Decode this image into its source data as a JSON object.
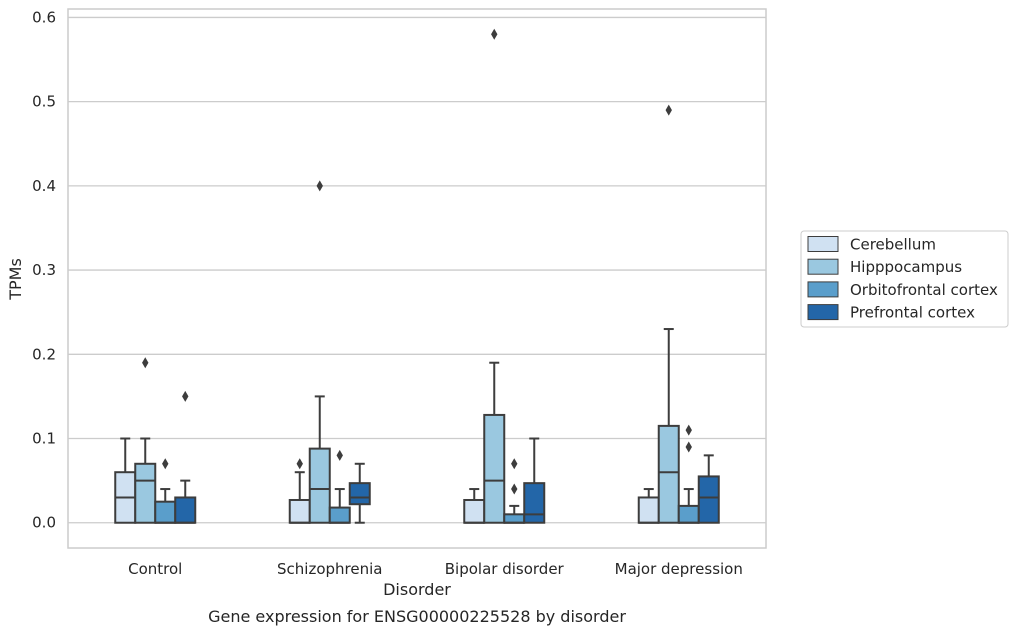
{
  "chart_data": {
    "type": "box",
    "title": "Gene expression for ENSG00000225528 by disorder",
    "xlabel": "Disorder",
    "ylabel": "TPMs",
    "ylim": [
      -0.03,
      0.61
    ],
    "yticks": [
      "0.0",
      "0.1",
      "0.2",
      "0.3",
      "0.4",
      "0.5",
      "0.6"
    ],
    "ytick_values": [
      0,
      0.1,
      0.2,
      0.3,
      0.4,
      0.5,
      0.6
    ],
    "grid": "horizontal",
    "legend_placement": "center-right outside",
    "categories": [
      "Control",
      "Schizophrenia",
      "Bipolar disorder",
      "Major depression"
    ],
    "series": [
      {
        "name": "Cerebellum",
        "color": "#d0e1f2",
        "boxes": [
          {
            "whislo": 0,
            "q1": 0,
            "med": 0.03,
            "q3": 0.06,
            "whishi": 0.1,
            "fliers": []
          },
          {
            "whislo": 0,
            "q1": 0,
            "med": 0,
            "q3": 0.027,
            "whishi": 0.06,
            "fliers": [
              0.07
            ]
          },
          {
            "whislo": 0,
            "q1": 0,
            "med": 0,
            "q3": 0.027,
            "whishi": 0.04,
            "fliers": []
          },
          {
            "whislo": 0,
            "q1": 0,
            "med": 0,
            "q3": 0.03,
            "whishi": 0.04,
            "fliers": []
          }
        ]
      },
      {
        "name": "Hipppocampus",
        "color": "#9ac8e0",
        "boxes": [
          {
            "whislo": 0,
            "q1": 0,
            "med": 0.05,
            "q3": 0.07,
            "whishi": 0.1,
            "fliers": [
              0.19
            ]
          },
          {
            "whislo": 0,
            "q1": 0,
            "med": 0.04,
            "q3": 0.088,
            "whishi": 0.15,
            "fliers": [
              0.4
            ]
          },
          {
            "whislo": 0,
            "q1": 0,
            "med": 0.05,
            "q3": 0.128,
            "whishi": 0.19,
            "fliers": [
              0.58
            ]
          },
          {
            "whislo": 0,
            "q1": 0,
            "med": 0.06,
            "q3": 0.115,
            "whishi": 0.23,
            "fliers": [
              0.49
            ]
          }
        ]
      },
      {
        "name": "Orbitofrontal cortex",
        "color": "#5a9ecb",
        "boxes": [
          {
            "whislo": 0,
            "q1": 0,
            "med": 0,
            "q3": 0.025,
            "whishi": 0.04,
            "fliers": [
              0.07
            ]
          },
          {
            "whislo": 0,
            "q1": 0,
            "med": 0,
            "q3": 0.018,
            "whishi": 0.04,
            "fliers": [
              0.08
            ]
          },
          {
            "whislo": 0,
            "q1": 0,
            "med": 0,
            "q3": 0.01,
            "whishi": 0.02,
            "fliers": [
              0.04,
              0.07
            ]
          },
          {
            "whislo": 0,
            "q1": 0,
            "med": 0,
            "q3": 0.02,
            "whishi": 0.04,
            "fliers": [
              0.09,
              0.11
            ]
          }
        ]
      },
      {
        "name": "Prefrontal cortex",
        "color": "#2366a8",
        "boxes": [
          {
            "whislo": 0,
            "q1": 0,
            "med": 0,
            "q3": 0.03,
            "whishi": 0.05,
            "fliers": [
              0.15
            ]
          },
          {
            "whislo": 0,
            "q1": 0.022,
            "med": 0.03,
            "q3": 0.047,
            "whishi": 0.07,
            "fliers": []
          },
          {
            "whislo": 0,
            "q1": 0,
            "med": 0.01,
            "q3": 0.047,
            "whishi": 0.1,
            "fliers": []
          },
          {
            "whislo": 0,
            "q1": 0,
            "med": 0.03,
            "q3": 0.055,
            "whishi": 0.08,
            "fliers": []
          }
        ]
      }
    ]
  }
}
